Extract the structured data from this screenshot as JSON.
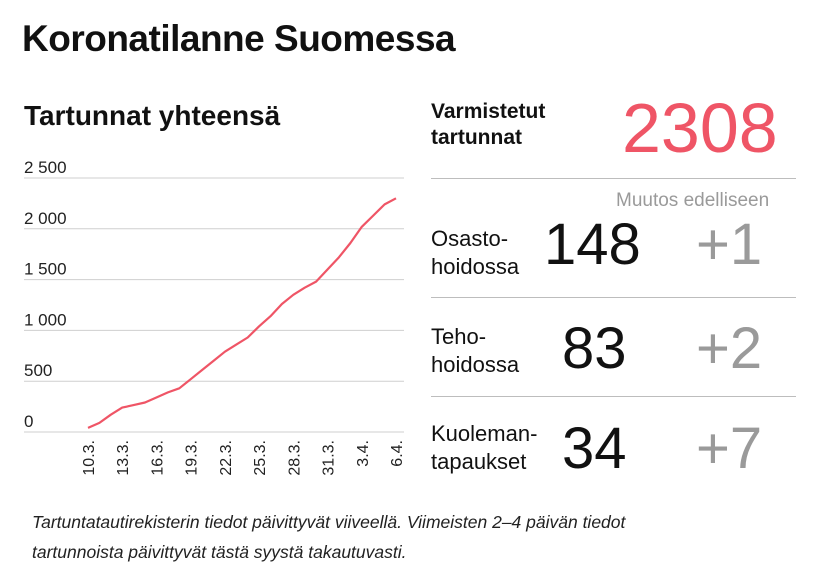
{
  "title": "Koronatilanne Suomessa",
  "chart_data": {
    "type": "line",
    "title": "Tartunnat yhteensä",
    "xlabel": "",
    "ylabel": "",
    "ylim": [
      0,
      2500
    ],
    "y_ticks": [
      0,
      500,
      1000,
      1500,
      2000,
      2500
    ],
    "y_tick_labels": [
      "0",
      "500",
      "1 000",
      "1 500",
      "2 000",
      "2 500"
    ],
    "x_tick_labels": [
      "10.3.",
      "13.3.",
      "16.3.",
      "19.3.",
      "22.3.",
      "25.3.",
      "28.3.",
      "31.3.",
      "3.4.",
      "6.4."
    ],
    "series": [
      {
        "name": "Tartunnat yhteensä",
        "color": "#ef5566",
        "x": [
          "10.3.",
          "11.3.",
          "12.3.",
          "13.3.",
          "14.3.",
          "15.3.",
          "16.3.",
          "17.3.",
          "18.3.",
          "19.3.",
          "20.3.",
          "21.3.",
          "22.3.",
          "23.3.",
          "24.3.",
          "25.3.",
          "26.3.",
          "27.3.",
          "28.3.",
          "29.3.",
          "30.3.",
          "31.3.",
          "1.4.",
          "2.4.",
          "3.4.",
          "4.4.",
          "5.4.",
          "6.4."
        ],
        "values": [
          40,
          90,
          170,
          240,
          265,
          290,
          340,
          390,
          430,
          520,
          610,
          700,
          790,
          860,
          930,
          1040,
          1140,
          1260,
          1350,
          1420,
          1480,
          1600,
          1720,
          1860,
          2020,
          2130,
          2240,
          2300
        ]
      }
    ]
  },
  "stats": {
    "confirmed": {
      "label_line1": "Varmistetut",
      "label_line2": "tartunnat",
      "value": "2308"
    },
    "change_header": "Muutos edelliseen",
    "rows": [
      {
        "label_line1": "Osasto-",
        "label_line2": "hoidossa",
        "value": "148",
        "change": "+1"
      },
      {
        "label_line1": "Teho-",
        "label_line2": "hoidossa",
        "value": "83",
        "change": "+2"
      },
      {
        "label_line1": "Kuoleman-",
        "label_line2": "tapaukset",
        "value": "34",
        "change": "+7"
      }
    ]
  },
  "footnote": {
    "line1": "Tartuntatautirekisterin tiedot päivittyvät viiveellä. Viimeisten 2–4 päivän tiedot",
    "line2": "tartunnoista päivittyvät tästä syystä takautuvasti."
  }
}
